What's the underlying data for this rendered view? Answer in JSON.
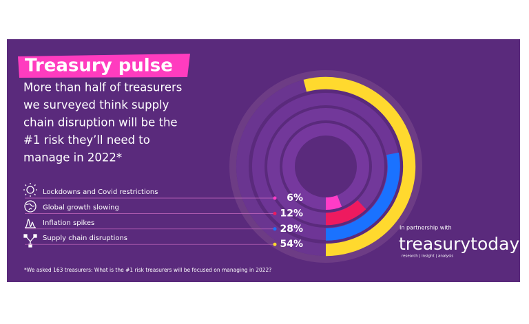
{
  "chart_data": {
    "type": "radial-bar",
    "title": "Treasury pulse",
    "subtitle": [
      "More than half of treasurers",
      "we surveyed think supply",
      "chain disruption will be the",
      "#1 risk they’ll need to",
      "manage in 2022*"
    ],
    "categories": [
      "Lockdowns and Covid restrictions",
      "Global growth slowing",
      "Inflation spikes",
      "Supply chain disruptions"
    ],
    "values": [
      6,
      12,
      28,
      54
    ],
    "value_labels": [
      "6%",
      "12%",
      "28%",
      "54%"
    ],
    "colors": [
      "#ff3cc7",
      "#ee1a5f",
      "#1a72ff",
      "#ffd92e"
    ],
    "footnote": "*We asked 163 treasurers: What is the #1 risk treasurers will be focused on managing in 2022?",
    "partner_intro": "In partnership with",
    "partner_name": "treasurytoday",
    "partner_tagline": "research | insight | analysis"
  }
}
